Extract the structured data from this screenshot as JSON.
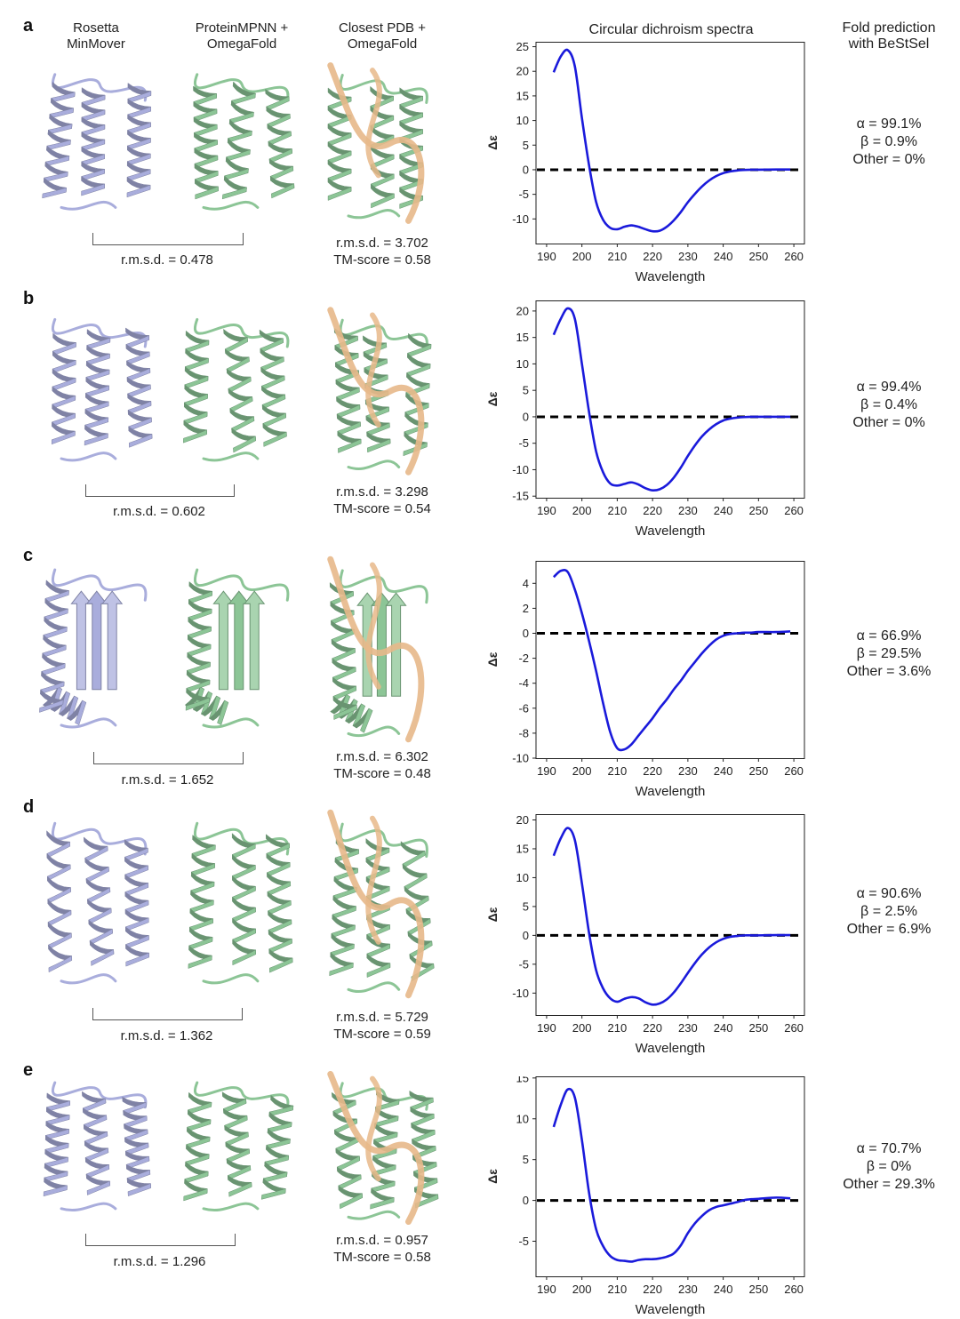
{
  "headers": {
    "rosetta": "Rosetta\nMinMover",
    "mpnn": "ProteinMPNN +\nOmegaFold",
    "pdb": "Closest PDB +\nOmegaFold",
    "cd": "Circular dichroism spectra",
    "fold": "Fold prediction\nwith BeStSel"
  },
  "colors": {
    "rosetta": "#a9addc",
    "mpnn": "#8cc596",
    "pdb": "#e7b889",
    "curve": "#1a1adb",
    "zero_line": "#000000"
  },
  "panels": [
    {
      "letter": "a",
      "rmsd_pair": "r.m.s.d. = 0.478",
      "rmsd_pdb": "r.m.s.d. = 3.702",
      "tm_score": "TM-score = 0.58",
      "fold": [
        "α = 99.1%",
        "β = 0.9%",
        "Other = 0%"
      ]
    },
    {
      "letter": "b",
      "rmsd_pair": "r.m.s.d. = 0.602",
      "rmsd_pdb": "r.m.s.d. = 3.298",
      "tm_score": "TM-score = 0.54",
      "fold": [
        "α = 99.4%",
        "β = 0.4%",
        "Other = 0%"
      ]
    },
    {
      "letter": "c",
      "rmsd_pair": "r.m.s.d. = 1.652",
      "rmsd_pdb": "r.m.s.d. = 6.302",
      "tm_score": "TM-score = 0.48",
      "fold": [
        "α = 66.9%",
        "β = 29.5%",
        "Other = 3.6%"
      ]
    },
    {
      "letter": "d",
      "rmsd_pair": "r.m.s.d. = 1.362",
      "rmsd_pdb": "r.m.s.d. = 5.729",
      "tm_score": "TM-score = 0.59",
      "fold": [
        "α = 90.6%",
        "β = 2.5%",
        "Other = 6.9%"
      ]
    },
    {
      "letter": "e",
      "rmsd_pair": "r.m.s.d. = 1.296",
      "rmsd_pdb": "r.m.s.d. = 0.957",
      "tm_score": "TM-score = 0.58",
      "fold": [
        "α = 70.7%",
        "β = 0%",
        "Other = 29.3%"
      ]
    }
  ],
  "chart_data": [
    {
      "panel": "a",
      "type": "line",
      "title": "Circular dichroism spectra",
      "xlabel": "Wavelength",
      "ylabel": "Δε",
      "xlim": [
        187,
        263
      ],
      "ylim": [
        -15,
        26
      ],
      "xticks": [
        190,
        200,
        210,
        220,
        230,
        240,
        250,
        260
      ],
      "yticks": [
        25,
        20,
        15,
        10,
        5,
        0,
        -5,
        -10
      ],
      "zero_line": 0,
      "series": [
        {
          "x": [
            192,
            194,
            196,
            198,
            200,
            202,
            204,
            206,
            208,
            210,
            212,
            214,
            216,
            218,
            220,
            222,
            224,
            226,
            228,
            230,
            232,
            234,
            236,
            238,
            240,
            242,
            244,
            246,
            248,
            250,
            255,
            259
          ],
          "y": [
            19.8,
            23,
            24.3,
            21,
            10.5,
            1,
            -6.5,
            -10.2,
            -11.8,
            -12.1,
            -11.6,
            -11.3,
            -11.6,
            -12.1,
            -12.5,
            -12.4,
            -11.6,
            -10.3,
            -8.6,
            -6.6,
            -4.9,
            -3.4,
            -2.2,
            -1.3,
            -0.7,
            -0.35,
            -0.15,
            -0.05,
            0,
            0,
            0.05,
            0.05
          ]
        }
      ]
    },
    {
      "panel": "b",
      "type": "line",
      "xlabel": "Wavelength",
      "ylabel": "Δε",
      "xlim": [
        187,
        263
      ],
      "ylim": [
        -15.3,
        22
      ],
      "xticks": [
        190,
        200,
        210,
        220,
        230,
        240,
        250,
        260
      ],
      "yticks": [
        20,
        15,
        10,
        5,
        0,
        -5,
        -10,
        -15
      ],
      "zero_line": 0,
      "series": [
        {
          "x": [
            192,
            194,
            196,
            198,
            200,
            202,
            204,
            206,
            208,
            210,
            212,
            214,
            216,
            218,
            220,
            222,
            224,
            226,
            228,
            230,
            232,
            234,
            236,
            238,
            240,
            242,
            244,
            246,
            248,
            250,
            255,
            259
          ],
          "y": [
            15.5,
            18.5,
            20.5,
            18.5,
            10,
            1,
            -6.5,
            -10.5,
            -12.6,
            -13,
            -12.7,
            -12.4,
            -12.8,
            -13.5,
            -13.9,
            -13.7,
            -12.9,
            -11.5,
            -9.6,
            -7.4,
            -5.4,
            -3.7,
            -2.4,
            -1.4,
            -0.7,
            -0.35,
            -0.15,
            -0.05,
            0,
            0,
            0,
            0
          ]
        }
      ]
    },
    {
      "panel": "c",
      "type": "line",
      "xlabel": "Wavelength",
      "ylabel": "Δε",
      "xlim": [
        187,
        263
      ],
      "ylim": [
        -10,
        5.8
      ],
      "xticks": [
        190,
        200,
        210,
        220,
        230,
        240,
        250,
        260
      ],
      "yticks": [
        4,
        2,
        0,
        -2,
        -4,
        -6,
        -8,
        -10
      ],
      "zero_line": 0,
      "series": [
        {
          "x": [
            192,
            194,
            196,
            198,
            200,
            202,
            204,
            206,
            208,
            210,
            212,
            214,
            216,
            218,
            220,
            222,
            224,
            226,
            228,
            230,
            232,
            234,
            236,
            238,
            240,
            242,
            244,
            246,
            248,
            250,
            255,
            259
          ],
          "y": [
            4.5,
            5,
            4.9,
            3.5,
            1.6,
            -0.6,
            -3,
            -5.6,
            -7.9,
            -9.2,
            -9.3,
            -8.9,
            -8.2,
            -7.5,
            -6.8,
            -6,
            -5.3,
            -4.5,
            -3.8,
            -3,
            -2.3,
            -1.6,
            -1,
            -0.5,
            -0.2,
            -0.05,
            0,
            0.05,
            0.05,
            0.1,
            0.1,
            0.15
          ]
        }
      ]
    },
    {
      "panel": "d",
      "type": "line",
      "xlabel": "Wavelength",
      "ylabel": "Δε",
      "xlim": [
        187,
        263
      ],
      "ylim": [
        -13.8,
        21
      ],
      "xticks": [
        190,
        200,
        210,
        220,
        230,
        240,
        250,
        260
      ],
      "yticks": [
        20,
        15,
        10,
        5,
        0,
        -5,
        -10
      ],
      "zero_line": 0,
      "series": [
        {
          "x": [
            192,
            194,
            196,
            198,
            200,
            202,
            204,
            206,
            208,
            210,
            212,
            214,
            216,
            218,
            220,
            222,
            224,
            226,
            228,
            230,
            232,
            234,
            236,
            238,
            240,
            242,
            244,
            246,
            248,
            250,
            255,
            259
          ],
          "y": [
            13.8,
            16.8,
            18.6,
            16.5,
            9,
            0.5,
            -6,
            -9.2,
            -10.9,
            -11.5,
            -11,
            -10.7,
            -10.9,
            -11.6,
            -12,
            -11.8,
            -11.1,
            -9.9,
            -8.3,
            -6.5,
            -4.8,
            -3.3,
            -2.1,
            -1.2,
            -0.6,
            -0.25,
            -0.1,
            0,
            0,
            0,
            0.05,
            0.05
          ]
        }
      ]
    },
    {
      "panel": "e",
      "type": "line",
      "xlabel": "Wavelength",
      "ylabel": "Δε",
      "xlim": [
        187,
        263
      ],
      "ylim": [
        -9.3,
        15.2
      ],
      "xticks": [
        190,
        200,
        210,
        220,
        230,
        240,
        250,
        260
      ],
      "yticks": [
        15,
        10,
        5,
        0,
        -5
      ],
      "zero_line": 0,
      "series": [
        {
          "x": [
            192,
            194,
            196,
            198,
            200,
            202,
            204,
            206,
            208,
            210,
            212,
            214,
            216,
            218,
            220,
            222,
            224,
            226,
            228,
            230,
            232,
            234,
            236,
            238,
            240,
            242,
            244,
            246,
            248,
            250,
            255,
            259
          ],
          "y": [
            9,
            11.7,
            13.6,
            12.6,
            7.4,
            1,
            -3.5,
            -5.6,
            -6.8,
            -7.3,
            -7.4,
            -7.5,
            -7.3,
            -7.2,
            -7.2,
            -7.1,
            -6.9,
            -6.5,
            -5.5,
            -4,
            -2.8,
            -1.9,
            -1.2,
            -0.8,
            -0.6,
            -0.4,
            -0.2,
            0.05,
            0.15,
            0.2,
            0.35,
            0.25
          ]
        }
      ]
    }
  ]
}
